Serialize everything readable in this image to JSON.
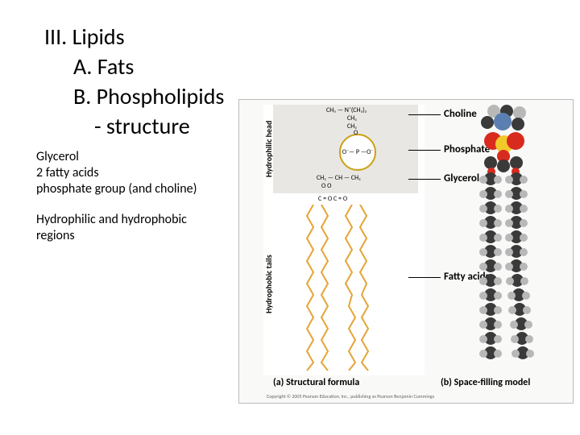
{
  "outline": {
    "l1": "III. Lipids",
    "l2a": "A. Fats",
    "l2b": "B. Phospholipids",
    "l3": "- structure"
  },
  "notes": {
    "n1": "Glycerol",
    "n2": "2 fatty acids",
    "n3": "phosphate group (and choline)",
    "n4": "Hydrophilic and hydrophobic",
    "n5": "regions"
  },
  "diagram": {
    "side_label_head": "Hydrophilic head",
    "side_label_tails": "Hydrophobic tails",
    "labels": {
      "choline": "Choline",
      "phosphate": "Phosphate",
      "glycerol": "Glycerol",
      "fatty": "Fatty acids"
    },
    "caption_a": "(a) Structural formula",
    "caption_b": "(b) Space-filling model",
    "copyright": "Copyright © 2005 Pearson Education, Inc., publishing as Pearson Benjamin Cummings",
    "chem": {
      "choline_top": "CH₃ — N⁺(CH₃)₂",
      "ch2_a": "CH₂",
      "ch2_b": "CH₂",
      "phos": "O⁻— P —O⁻",
      "o_dbl": "O",
      "glyc": "CH₂ — CH — CH₂",
      "obonds": "O          O",
      "cobonds": "C = O   C = O"
    },
    "colors": {
      "head_bg": "#e9e7e4",
      "tail_stroke": "#e5a437",
      "phos_ring": "#caa31a",
      "carbon": "#3a3a3a",
      "hydrogen": "#b8b8b8",
      "nitrogen": "#5b7fb0",
      "oxygen": "#d92a1e",
      "phosphorus": "#f2c92a",
      "panel_bg": "#f9f9f8"
    },
    "sf_tails": [
      {
        "x": 50,
        "balls": 13
      },
      {
        "x": 82,
        "balls": 13
      }
    ]
  }
}
